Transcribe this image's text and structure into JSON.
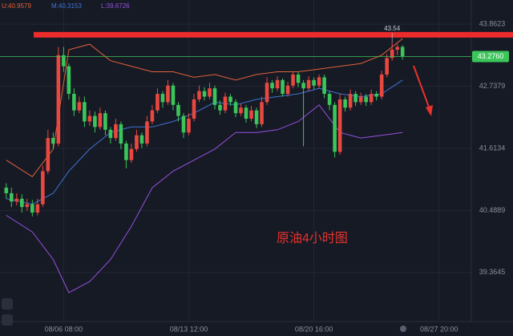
{
  "chart_data": {
    "type": "candlestick",
    "annotation": "原油4小时图",
    "up_color": "#e8483f",
    "down_color": "#3cc55a",
    "open": [
      40.9,
      40.8,
      40.65,
      40.7,
      40.55,
      40.6,
      40.45,
      40.6,
      41.2,
      41.8,
      41.7,
      43.3,
      43.1,
      42.6,
      42.3,
      42.45,
      42.1,
      42.2,
      42.0,
      42.25,
      41.95,
      41.8,
      42.05,
      41.7,
      41.4,
      41.6,
      41.85,
      41.7,
      42.1,
      42.3,
      42.6,
      42.45,
      42.75,
      42.4,
      42.2,
      41.9,
      42.15,
      42.5,
      42.65,
      42.55,
      42.7,
      42.4,
      42.3,
      42.55,
      42.45,
      42.25,
      42.35,
      42.15,
      42.3,
      42.05,
      42.45,
      42.8,
      42.7,
      42.85,
      42.6,
      42.75,
      42.95,
      42.8,
      42.7,
      42.85,
      42.75,
      42.9,
      42.6,
      42.4,
      41.55,
      42.5,
      42.35,
      42.6,
      42.45,
      42.55,
      42.45,
      42.6,
      42.55,
      42.95,
      43.25,
      43.4,
      43.45
    ],
    "high": [
      40.98,
      40.9,
      40.8,
      40.78,
      40.7,
      40.68,
      40.7,
      41.3,
      41.95,
      41.9,
      43.45,
      43.45,
      43.15,
      42.7,
      42.55,
      42.55,
      42.3,
      42.28,
      42.35,
      42.3,
      42.0,
      42.15,
      42.1,
      41.75,
      41.7,
      41.95,
      41.9,
      42.2,
      42.4,
      42.7,
      42.65,
      42.85,
      42.8,
      42.45,
      42.25,
      42.25,
      42.6,
      42.75,
      42.72,
      42.8,
      42.75,
      42.48,
      42.62,
      42.6,
      42.5,
      42.42,
      42.4,
      42.38,
      42.35,
      42.55,
      42.9,
      42.85,
      42.92,
      42.88,
      42.82,
      43.0,
      43.0,
      42.85,
      42.92,
      42.9,
      42.95,
      42.95,
      42.65,
      42.45,
      42.6,
      42.55,
      42.68,
      42.65,
      42.62,
      42.6,
      42.68,
      42.65,
      43.02,
      43.32,
      43.54,
      43.5,
      43.48
    ],
    "low": [
      40.7,
      40.55,
      40.58,
      40.45,
      40.48,
      40.38,
      40.4,
      40.55,
      41.15,
      41.6,
      41.65,
      43.0,
      42.5,
      42.2,
      42.25,
      42.0,
      42.02,
      41.9,
      41.95,
      41.85,
      41.7,
      41.75,
      41.6,
      41.25,
      41.35,
      41.55,
      41.62,
      41.65,
      42.05,
      42.25,
      42.35,
      42.4,
      42.3,
      42.1,
      41.8,
      41.85,
      42.1,
      42.45,
      42.48,
      42.5,
      42.32,
      42.22,
      42.25,
      42.38,
      42.18,
      42.2,
      42.08,
      42.1,
      41.98,
      42.0,
      42.4,
      42.62,
      42.65,
      42.55,
      42.55,
      42.7,
      42.72,
      41.65,
      42.65,
      42.68,
      42.7,
      42.52,
      42.3,
      41.45,
      41.5,
      42.28,
      42.3,
      42.38,
      42.4,
      42.38,
      42.4,
      42.48,
      42.5,
      42.9,
      43.2,
      43.3,
      43.22
    ],
    "close": [
      40.8,
      40.65,
      40.7,
      40.55,
      40.6,
      40.45,
      40.6,
      41.2,
      41.8,
      41.7,
      43.3,
      43.1,
      42.6,
      42.3,
      42.45,
      42.1,
      42.2,
      42.0,
      42.25,
      41.95,
      41.8,
      42.05,
      41.7,
      41.4,
      41.6,
      41.85,
      41.7,
      42.1,
      42.3,
      42.6,
      42.45,
      42.75,
      42.4,
      42.2,
      41.9,
      42.15,
      42.5,
      42.65,
      42.55,
      42.7,
      42.4,
      42.3,
      42.55,
      42.45,
      42.25,
      42.35,
      42.15,
      42.3,
      42.05,
      42.45,
      42.8,
      42.7,
      42.85,
      42.6,
      42.75,
      42.95,
      42.8,
      42.7,
      42.85,
      42.75,
      42.9,
      42.6,
      42.4,
      41.55,
      42.5,
      42.35,
      42.6,
      42.45,
      42.55,
      42.45,
      42.6,
      42.55,
      42.95,
      43.25,
      43.4,
      43.45,
      43.28
    ],
    "band_x": [
      0,
      5,
      9,
      12,
      16,
      20,
      24,
      28,
      32,
      36,
      40,
      44,
      48,
      52,
      56,
      60,
      64,
      68,
      72,
      76
    ],
    "bands": [
      {
        "name": "U:40.9579",
        "color": "#e0603a",
        "values": [
          41.4,
          41.1,
          41.6,
          43.4,
          43.5,
          43.2,
          43.1,
          43.0,
          43.0,
          42.9,
          42.95,
          42.85,
          42.95,
          43.0,
          43.0,
          43.05,
          43.1,
          43.15,
          43.3,
          43.6
        ]
      },
      {
        "name": "M:40.3153",
        "color": "#3f73d6",
        "values": [
          40.7,
          40.6,
          40.8,
          41.2,
          41.6,
          41.9,
          42.0,
          42.0,
          42.1,
          42.25,
          42.45,
          42.4,
          42.5,
          42.55,
          42.6,
          42.7,
          42.6,
          42.55,
          42.6,
          42.85
        ]
      },
      {
        "name": "L:39.6726",
        "color": "#9650e0",
        "values": [
          40.4,
          40.1,
          39.6,
          39.0,
          39.2,
          39.6,
          40.2,
          40.9,
          41.2,
          41.4,
          41.6,
          41.9,
          41.9,
          41.95,
          42.1,
          42.4,
          41.9,
          41.8,
          41.85,
          41.9
        ]
      }
    ],
    "resistance": 43.67,
    "price": {
      "value": 43.276,
      "label": "43.2760"
    },
    "ylim": [
      38.49,
      44.3
    ],
    "yticks": [
      43.8623,
      42.7379,
      41.6134,
      40.4889,
      39.3645
    ],
    "xlim": [
      -1.2,
      89.5
    ],
    "xticks": [
      {
        "value": 11,
        "label": "08/06 08:00"
      },
      {
        "value": 35,
        "label": "08/13 12:00"
      },
      {
        "value": 59,
        "label": "08/20 16:00"
      },
      {
        "value": 83,
        "label": "08/27 20:00"
      }
    ],
    "grid": true
  }
}
